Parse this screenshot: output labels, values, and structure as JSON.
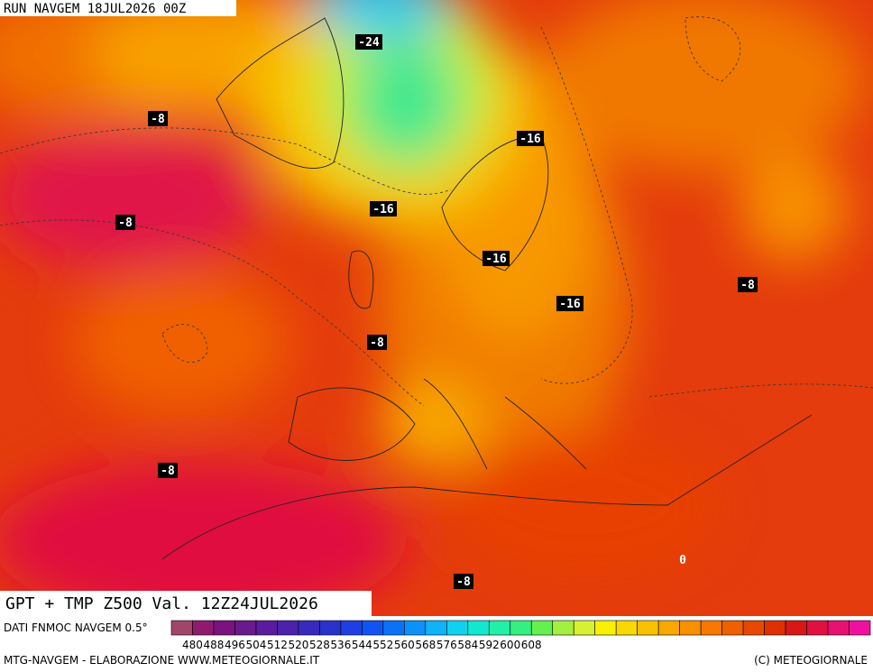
{
  "header": {
    "run": "RUN NAVGEM 18JUL2026 00Z",
    "title": "GPT + TMP Z500 Val. 12Z24JUL2026"
  },
  "contour_labels": [
    "-24",
    "-8",
    "-16",
    "-8",
    "-16",
    "-16",
    "-8",
    "-16",
    "-8",
    "-8",
    "0",
    "-8"
  ],
  "colorbar": {
    "source": "DATI FNMOC NAVGEM 0.5°",
    "labels": [
      480,
      488,
      496,
      504,
      512,
      520,
      528,
      536,
      544,
      552,
      560,
      568,
      576,
      584,
      592,
      600,
      608
    ],
    "colors": [
      "#a2456a",
      "#8e1b6f",
      "#7b1280",
      "#6a1a8c",
      "#5a1c9c",
      "#4a22ac",
      "#3a2abc",
      "#2a32cc",
      "#1e40e2",
      "#1254f2",
      "#0a72f6",
      "#0a92f8",
      "#10b2f8",
      "#10d2f0",
      "#12e8d0",
      "#22f0a8",
      "#34f080",
      "#64f050",
      "#a2f040",
      "#d8f030",
      "#f8f000",
      "#f8d800",
      "#f8c000",
      "#f8a800",
      "#f89000",
      "#f87800",
      "#f06000",
      "#e84800",
      "#e03000",
      "#d81818",
      "#e01040",
      "#e81070",
      "#f010a0"
    ]
  },
  "footer": {
    "left": "MTG-NAVGEM - ELABORAZIONE WWW.METEOGIORNALE.IT",
    "right": "(C) METEOGIORNALE"
  }
}
